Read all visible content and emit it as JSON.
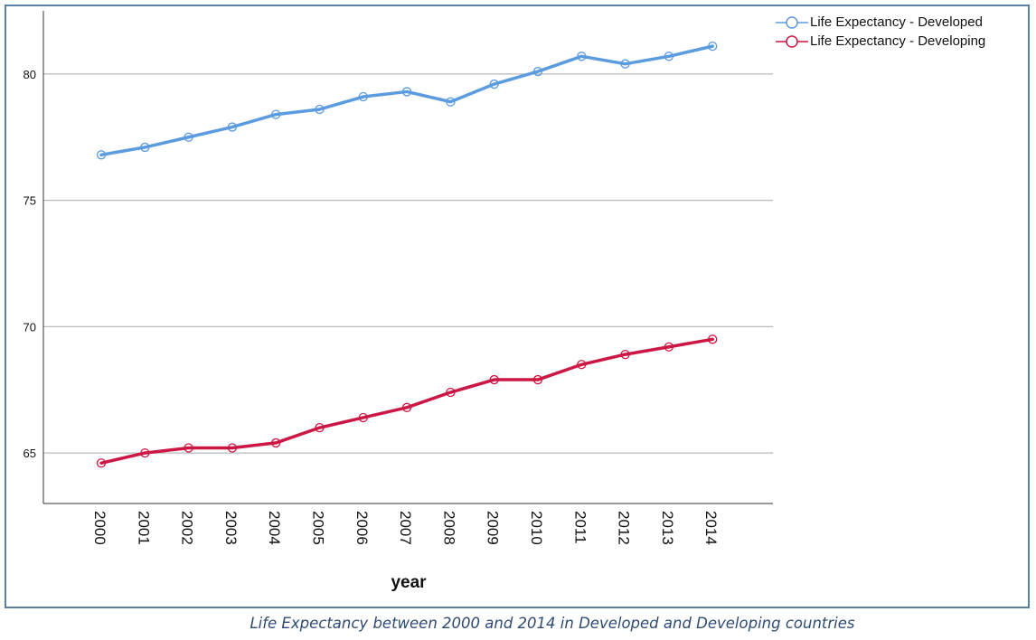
{
  "chart_data": {
    "type": "line",
    "title": "",
    "xlabel": "year",
    "ylabel": "",
    "categories": [
      "2000",
      "2001",
      "2002",
      "2003",
      "2004",
      "2005",
      "2006",
      "2007",
      "2008",
      "2009",
      "2010",
      "2011",
      "2012",
      "2013",
      "2014"
    ],
    "ylim": [
      63,
      82.5
    ],
    "yticks": [
      65,
      70,
      75,
      80
    ],
    "grid": "horizontal",
    "legend_position": "top-right",
    "series": [
      {
        "name": "Life Expectancy - Developed",
        "color": "#5b9be0",
        "values": [
          76.8,
          77.1,
          77.5,
          77.9,
          78.4,
          78.6,
          79.1,
          79.3,
          78.9,
          79.6,
          80.1,
          80.7,
          80.4,
          80.7,
          81.1
        ]
      },
      {
        "name": "Life Expectancy - Developing",
        "color": "#cc1744",
        "values": [
          64.6,
          65.0,
          65.2,
          65.2,
          65.4,
          66.0,
          66.4,
          66.8,
          67.4,
          67.9,
          67.9,
          68.5,
          68.9,
          69.2,
          69.5
        ]
      }
    ]
  },
  "caption": "Life Expectancy between 2000 and 2014 in Developed and Developing countries"
}
